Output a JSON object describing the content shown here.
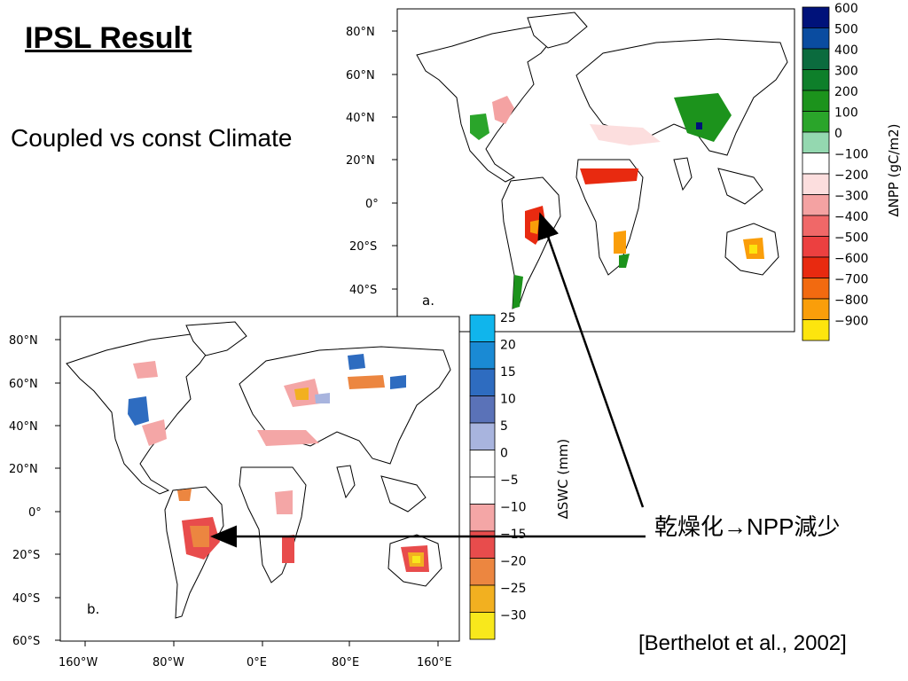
{
  "title": "IPSL Result",
  "subtitle": "Coupled vs const Climate",
  "annotation": "乾燥化→NPP減少",
  "citation": "[Berthelot et al., 2002]",
  "panel_a": {
    "label": "a.",
    "lat_ticks": [
      "80°N",
      "60°N",
      "40°N",
      "20°N",
      "0°",
      "20°S",
      "40°S"
    ],
    "colorbar_title": "∆NPP (gC/m2)",
    "colorbar_labels": [
      "600",
      "500",
      "400",
      "300",
      "200",
      "100",
      "0",
      "−100",
      "−200",
      "−300",
      "−400",
      "−500",
      "−600",
      "−700",
      "−800",
      "−900"
    ],
    "colorbar_colors": [
      "#00127a",
      "#0a4ca0",
      "#0b6b3e",
      "#0e7f2a",
      "#1c931c",
      "#2aa52a",
      "#94d8b0",
      "#ffffff",
      "#fcdede",
      "#f4a2a2",
      "#f06868",
      "#ec4040",
      "#e82a10",
      "#f26a10",
      "#fa9e0a",
      "#fde50e"
    ]
  },
  "panel_b": {
    "label": "b.",
    "lat_ticks": [
      "80°N",
      "60°N",
      "40°N",
      "20°N",
      "0°",
      "20°S",
      "40°S",
      "60°S"
    ],
    "lon_ticks": [
      "160°W",
      "80°W",
      "0°E",
      "80°E",
      "160°E"
    ],
    "colorbar_title": "∆SWC (mm)",
    "colorbar_labels": [
      "25",
      "20",
      "15",
      "10",
      "5",
      "0",
      "−5",
      "−10",
      "−15",
      "−20",
      "−25",
      "−30"
    ],
    "colorbar_colors": [
      "#10b5ec",
      "#1a8ad4",
      "#2e6cc0",
      "#5a72b8",
      "#a8b4de",
      "#ffffff",
      "#ffffff",
      "#f4a6a6",
      "#e84c4c",
      "#ec8640",
      "#f2b020",
      "#f8e81c"
    ]
  }
}
